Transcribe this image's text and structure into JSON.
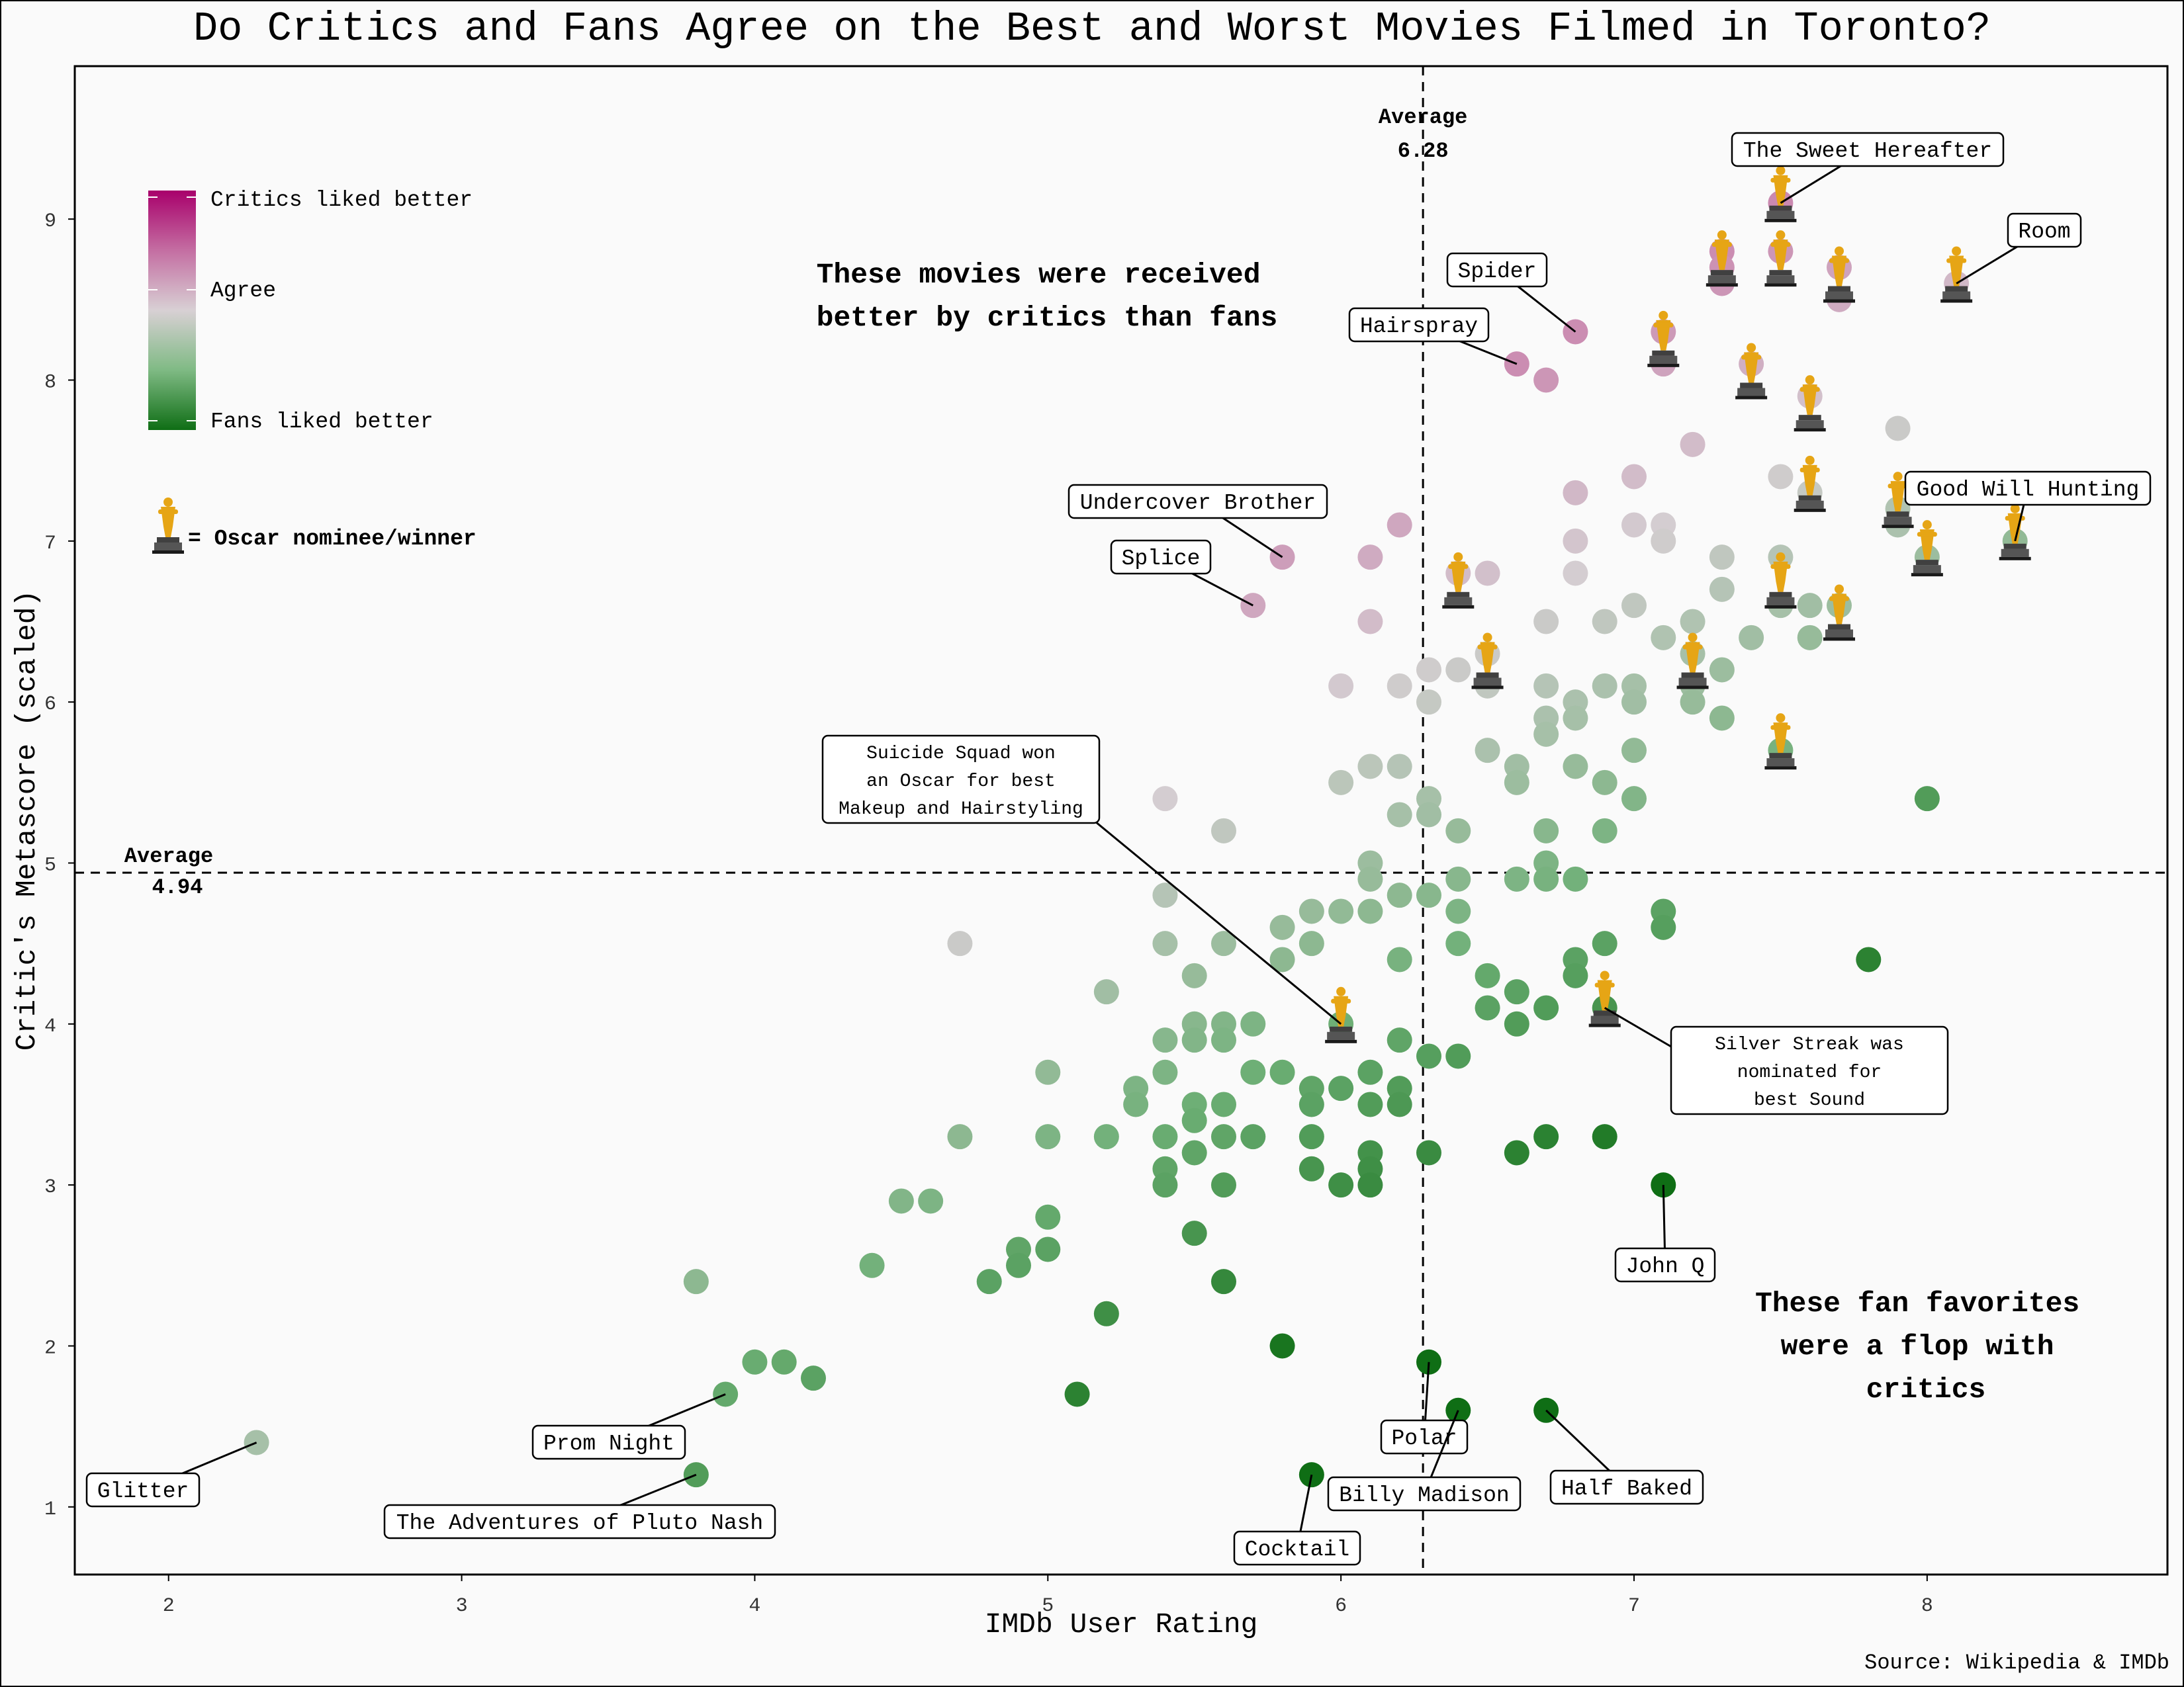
{
  "chart_data": {
    "type": "scatter",
    "title": "Do Critics and Fans Agree on the Best and Worst Movies Filmed in Toronto?",
    "xlabel": "IMDb User Rating",
    "ylabel": "Critic's Metascore (scaled)",
    "source": "Source: Wikipedia & IMDb",
    "xlim": [
      1.68,
      8.82
    ],
    "ylim": [
      0.58,
      9.95
    ],
    "xticks": [
      2,
      3,
      4,
      5,
      6,
      7,
      8
    ],
    "yticks": [
      1,
      2,
      3,
      4,
      5,
      6,
      7,
      8,
      9
    ],
    "grid": false,
    "colors": {
      "critics": "#b0106e",
      "agree": "#d3cdd0",
      "fans": "#1f7a1f",
      "oscar": "#e6a515",
      "oscar_base": "#404040"
    },
    "legend": {
      "critics_label": "Critics liked better",
      "agree_label": "Agree",
      "fans_label": "Fans liked better",
      "oscar_label": "= Oscar nominee/winner"
    },
    "reference_lines": {
      "x_average": {
        "value": 6.28,
        "label": "Average",
        "value_label": "6.28"
      },
      "y_average": {
        "value": 4.94,
        "label": "Average",
        "value_label": "4.94"
      }
    },
    "quadrant_notes": {
      "critics": [
        "These movies were received",
        "better by critics than fans"
      ],
      "fans": [
        "These fan favorites",
        "were a flop with",
        "critics"
      ]
    },
    "labeled_movies": [
      {
        "name": "The Sweet Hereafter",
        "x": 7.5,
        "y": 9.1
      },
      {
        "name": "Room",
        "x": 8.1,
        "y": 8.6
      },
      {
        "name": "Spider",
        "x": 6.8,
        "y": 8.3
      },
      {
        "name": "Hairspray",
        "x": 6.6,
        "y": 8.1
      },
      {
        "name": "Undercover Brother",
        "x": 5.8,
        "y": 6.9
      },
      {
        "name": "Splice",
        "x": 5.7,
        "y": 6.6
      },
      {
        "name": "Good Will Hunting",
        "x": 8.3,
        "y": 7.0
      },
      {
        "name": "John Q",
        "x": 7.1,
        "y": 3.0
      },
      {
        "name": "Glitter",
        "x": 2.3,
        "y": 1.4
      },
      {
        "name": "Prom Night",
        "x": 3.9,
        "y": 1.7
      },
      {
        "name": "The Adventures of Pluto Nash",
        "x": 3.8,
        "y": 1.2
      },
      {
        "name": "Polar",
        "x": 6.3,
        "y": 1.9
      },
      {
        "name": "Billy Madison",
        "x": 6.4,
        "y": 1.6
      },
      {
        "name": "Half Baked",
        "x": 6.7,
        "y": 1.6
      },
      {
        "name": "Cocktail",
        "x": 5.9,
        "y": 1.2
      }
    ],
    "annotations": [
      {
        "lines": [
          "Suicide Squad won",
          "an Oscar for best",
          "Makeup and Hairstyling"
        ],
        "x": 6.0,
        "y": 4.0
      },
      {
        "lines": [
          "Silver Streak was",
          "nominated for",
          "best Sound"
        ],
        "x": 6.9,
        "y": 4.1
      }
    ],
    "points": [
      [
        2.3,
        1.4
      ],
      [
        3.8,
        2.4
      ],
      [
        3.8,
        1.2
      ],
      [
        3.9,
        1.7
      ],
      [
        4.0,
        1.9
      ],
      [
        4.1,
        1.9
      ],
      [
        4.2,
        1.8
      ],
      [
        4.4,
        2.5
      ],
      [
        4.5,
        2.9
      ],
      [
        4.6,
        2.9
      ],
      [
        4.7,
        4.5
      ],
      [
        4.7,
        3.3
      ],
      [
        4.8,
        2.4
      ],
      [
        4.9,
        2.6
      ],
      [
        4.9,
        2.5
      ],
      [
        5.0,
        3.7
      ],
      [
        5.0,
        3.3
      ],
      [
        5.0,
        2.8
      ],
      [
        5.0,
        2.6
      ],
      [
        5.1,
        1.7
      ],
      [
        5.2,
        4.2
      ],
      [
        5.2,
        3.3
      ],
      [
        5.2,
        2.2
      ],
      [
        5.3,
        3.6
      ],
      [
        5.3,
        3.5
      ],
      [
        5.4,
        5.4
      ],
      [
        5.4,
        4.8
      ],
      [
        5.4,
        4.5
      ],
      [
        5.4,
        3.9
      ],
      [
        5.4,
        3.7
      ],
      [
        5.4,
        3.3
      ],
      [
        5.4,
        3.1
      ],
      [
        5.4,
        3.0
      ],
      [
        5.5,
        4.3
      ],
      [
        5.5,
        4.0
      ],
      [
        5.5,
        3.9
      ],
      [
        5.5,
        3.5
      ],
      [
        5.5,
        3.4
      ],
      [
        5.5,
        3.2
      ],
      [
        5.5,
        2.7
      ],
      [
        5.6,
        5.2
      ],
      [
        5.6,
        4.5
      ],
      [
        5.6,
        4.0
      ],
      [
        5.6,
        3.9
      ],
      [
        5.6,
        3.5
      ],
      [
        5.6,
        3.3
      ],
      [
        5.6,
        3.0
      ],
      [
        5.6,
        2.4
      ],
      [
        5.7,
        6.6
      ],
      [
        5.7,
        4.0
      ],
      [
        5.7,
        3.7
      ],
      [
        5.7,
        3.3
      ],
      [
        5.8,
        6.9
      ],
      [
        5.8,
        4.6
      ],
      [
        5.8,
        4.4
      ],
      [
        5.8,
        3.7
      ],
      [
        5.8,
        2.0
      ],
      [
        5.9,
        4.7
      ],
      [
        5.9,
        4.5
      ],
      [
        5.9,
        3.6
      ],
      [
        5.9,
        3.5
      ],
      [
        5.9,
        3.3
      ],
      [
        5.9,
        3.1
      ],
      [
        5.9,
        1.2
      ],
      [
        6.0,
        6.1
      ],
      [
        6.0,
        5.5
      ],
      [
        6.0,
        4.7
      ],
      [
        6.0,
        4.0
      ],
      [
        6.0,
        3.6
      ],
      [
        6.0,
        3.0
      ],
      [
        6.1,
        6.9
      ],
      [
        6.1,
        6.5
      ],
      [
        6.1,
        5.6
      ],
      [
        6.1,
        5.0
      ],
      [
        6.1,
        4.9
      ],
      [
        6.1,
        4.7
      ],
      [
        6.1,
        3.7
      ],
      [
        6.1,
        3.5
      ],
      [
        6.1,
        3.2
      ],
      [
        6.1,
        3.1
      ],
      [
        6.1,
        3.0
      ],
      [
        6.2,
        7.1
      ],
      [
        6.2,
        6.1
      ],
      [
        6.2,
        5.6
      ],
      [
        6.2,
        5.3
      ],
      [
        6.2,
        4.8
      ],
      [
        6.2,
        4.4
      ],
      [
        6.2,
        3.9
      ],
      [
        6.2,
        3.6
      ],
      [
        6.2,
        3.5
      ],
      [
        6.3,
        6.2
      ],
      [
        6.3,
        6.0
      ],
      [
        6.3,
        5.4
      ],
      [
        6.3,
        5.3
      ],
      [
        6.3,
        4.8
      ],
      [
        6.3,
        3.8
      ],
      [
        6.3,
        3.2
      ],
      [
        6.3,
        1.9
      ],
      [
        6.4,
        6.8
      ],
      [
        6.4,
        6.2
      ],
      [
        6.4,
        5.2
      ],
      [
        6.4,
        4.9
      ],
      [
        6.4,
        4.7
      ],
      [
        6.4,
        4.5
      ],
      [
        6.4,
        3.8
      ],
      [
        6.4,
        1.6
      ],
      [
        6.5,
        6.8
      ],
      [
        6.5,
        6.3
      ],
      [
        6.5,
        6.1
      ],
      [
        6.5,
        5.7
      ],
      [
        6.5,
        4.3
      ],
      [
        6.5,
        4.1
      ],
      [
        6.6,
        8.1
      ],
      [
        6.6,
        5.6
      ],
      [
        6.6,
        5.5
      ],
      [
        6.6,
        4.9
      ],
      [
        6.6,
        4.2
      ],
      [
        6.6,
        4.0
      ],
      [
        6.6,
        3.2
      ],
      [
        6.7,
        8.0
      ],
      [
        6.7,
        6.5
      ],
      [
        6.7,
        6.1
      ],
      [
        6.7,
        5.9
      ],
      [
        6.7,
        5.8
      ],
      [
        6.7,
        5.2
      ],
      [
        6.7,
        5.0
      ],
      [
        6.7,
        4.9
      ],
      [
        6.7,
        4.1
      ],
      [
        6.7,
        3.3
      ],
      [
        6.7,
        1.6
      ],
      [
        6.8,
        8.3
      ],
      [
        6.8,
        7.3
      ],
      [
        6.8,
        7.0
      ],
      [
        6.8,
        6.8
      ],
      [
        6.8,
        6.0
      ],
      [
        6.8,
        5.9
      ],
      [
        6.8,
        5.6
      ],
      [
        6.8,
        4.9
      ],
      [
        6.8,
        4.4
      ],
      [
        6.8,
        4.3
      ],
      [
        6.9,
        6.5
      ],
      [
        6.9,
        6.1
      ],
      [
        6.9,
        5.5
      ],
      [
        6.9,
        5.2
      ],
      [
        6.9,
        4.5
      ],
      [
        6.9,
        4.1
      ],
      [
        6.9,
        3.3
      ],
      [
        7.0,
        7.4
      ],
      [
        7.0,
        7.1
      ],
      [
        7.0,
        6.6
      ],
      [
        7.0,
        6.1
      ],
      [
        7.0,
        6.0
      ],
      [
        7.0,
        5.7
      ],
      [
        7.0,
        5.4
      ],
      [
        7.1,
        8.3
      ],
      [
        7.1,
        8.1
      ],
      [
        7.1,
        7.1
      ],
      [
        7.1,
        7.0
      ],
      [
        7.1,
        6.4
      ],
      [
        7.1,
        4.7
      ],
      [
        7.1,
        4.6
      ],
      [
        7.1,
        3.0
      ],
      [
        7.2,
        7.6
      ],
      [
        7.2,
        6.5
      ],
      [
        7.2,
        6.3
      ],
      [
        7.2,
        6.1
      ],
      [
        7.2,
        6.0
      ],
      [
        7.3,
        8.8
      ],
      [
        7.3,
        8.7
      ],
      [
        7.3,
        8.6
      ],
      [
        7.3,
        6.9
      ],
      [
        7.3,
        6.7
      ],
      [
        7.3,
        6.2
      ],
      [
        7.3,
        5.9
      ],
      [
        7.4,
        8.1
      ],
      [
        7.4,
        6.4
      ],
      [
        7.5,
        9.1
      ],
      [
        7.5,
        8.8
      ],
      [
        7.5,
        7.4
      ],
      [
        7.5,
        6.9
      ],
      [
        7.5,
        6.6
      ],
      [
        7.5,
        5.7
      ],
      [
        7.6,
        7.9
      ],
      [
        7.6,
        7.3
      ],
      [
        7.6,
        6.6
      ],
      [
        7.6,
        6.4
      ],
      [
        7.7,
        8.7
      ],
      [
        7.7,
        8.5
      ],
      [
        7.7,
        6.6
      ],
      [
        7.8,
        4.4
      ],
      [
        7.9,
        7.7
      ],
      [
        7.9,
        7.2
      ],
      [
        7.9,
        7.1
      ],
      [
        8.0,
        6.9
      ],
      [
        8.0,
        5.4
      ],
      [
        8.1,
        8.6
      ],
      [
        8.3,
        7.0
      ]
    ],
    "oscar_points": [
      [
        7.5,
        9.1
      ],
      [
        7.3,
        8.7
      ],
      [
        7.5,
        8.7
      ],
      [
        7.7,
        8.6
      ],
      [
        8.1,
        8.6
      ],
      [
        7.1,
        8.2
      ],
      [
        7.4,
        8.0
      ],
      [
        7.6,
        7.8
      ],
      [
        7.6,
        7.3
      ],
      [
        7.9,
        7.2
      ],
      [
        8.0,
        6.9
      ],
      [
        8.3,
        7.0
      ],
      [
        6.4,
        6.7
      ],
      [
        7.5,
        6.7
      ],
      [
        7.7,
        6.5
      ],
      [
        6.5,
        6.2
      ],
      [
        7.2,
        6.2
      ],
      [
        7.5,
        5.7
      ],
      [
        6.0,
        4.0
      ],
      [
        6.9,
        4.1
      ]
    ]
  }
}
